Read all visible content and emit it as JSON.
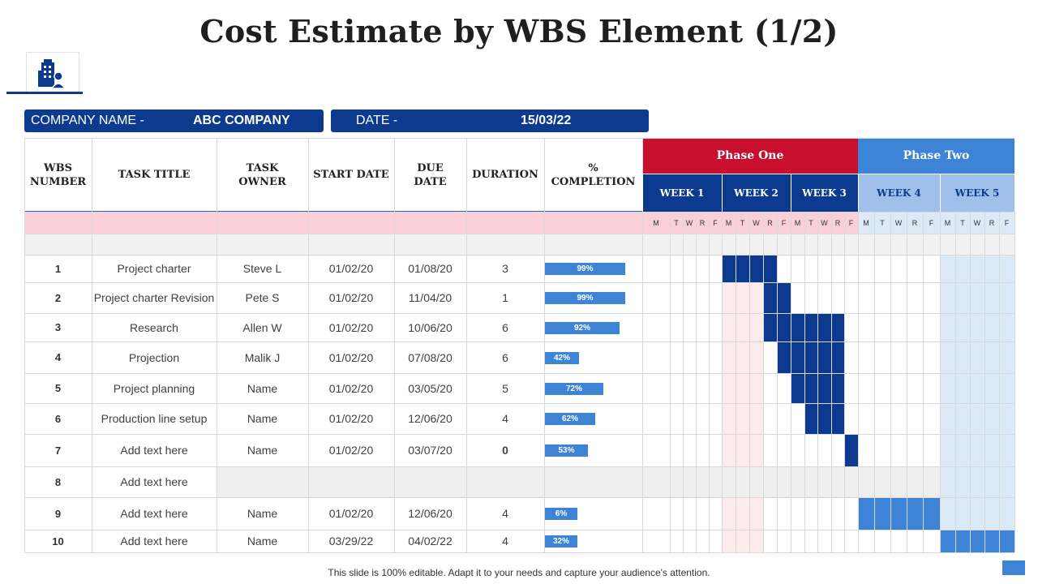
{
  "title": "Cost Estimate by WBS Element (1/2)",
  "logo_icon": "building-person-icon",
  "company": {
    "label": "COMPANY NAME -",
    "value": "ABC COMPANY"
  },
  "date": {
    "label": "DATE -",
    "value": "15/03/22"
  },
  "columns": [
    "WBS NUMBER",
    "TASK TITLE",
    "TASK OWNER",
    "START DATE",
    "DUE DATE",
    "DURATION",
    "% COMPLETION"
  ],
  "phases": [
    {
      "name": "Phase One",
      "color": "#c8102e"
    },
    {
      "name": "Phase Two",
      "color": "#3d84d6"
    }
  ],
  "weeks": [
    "WEEK 1",
    "WEEK 2",
    "WEEK 3",
    "WEEK 4",
    "WEEK 5"
  ],
  "days": [
    "M",
    "T",
    "W",
    "R",
    "F"
  ],
  "tasks": [
    {
      "wbs": "1",
      "title": "Project charter",
      "owner": "Steve L",
      "start": "01/02/20",
      "due": "01/08/20",
      "duration": "3",
      "completion": "99%",
      "completion_value": 0.99
    },
    {
      "wbs": "2",
      "title": "Project charter Revision",
      "owner": "Pete S",
      "start": "01/02/20",
      "due": "11/04/20",
      "duration": "1",
      "completion": "99%",
      "completion_value": 0.99
    },
    {
      "wbs": "3",
      "title": "Research",
      "owner": "Allen W",
      "start": "01/02/20",
      "due": "10/06/20",
      "duration": "6",
      "completion": "92%",
      "completion_value": 0.92
    },
    {
      "wbs": "4",
      "title": "Projection",
      "owner": "Malik J",
      "start": "01/02/20",
      "due": "07/08/20",
      "duration": "6",
      "completion": "42%",
      "completion_value": 0.42
    },
    {
      "wbs": "5",
      "title": "Project planning",
      "owner": "Name",
      "start": "01/02/20",
      "due": "03/05/20",
      "duration": "5",
      "completion": "72%",
      "completion_value": 0.72
    },
    {
      "wbs": "6",
      "title": "Production line setup",
      "owner": "Name",
      "start": "01/02/20",
      "due": "12/06/20",
      "duration": "4",
      "completion": "62%",
      "completion_value": 0.62
    },
    {
      "wbs": "7",
      "title": "Add text here",
      "owner": "Name",
      "start": "01/02/20",
      "due": "03/07/20",
      "duration": "0",
      "completion": "53%",
      "completion_value": 0.53
    },
    {
      "wbs": "8",
      "title": "Add text here",
      "owner": "",
      "start": "",
      "due": "",
      "duration": "",
      "completion": "",
      "completion_value": null
    },
    {
      "wbs": "9",
      "title": "Add text here",
      "owner": "Name",
      "start": "01/02/20",
      "due": "12/06/20",
      "duration": "4",
      "completion": "6%",
      "completion_value": 0.06
    },
    {
      "wbs": "10",
      "title": "Add text here",
      "owner": "Name",
      "start": "03/29/22",
      "due": "04/02/22",
      "duration": "4",
      "completion": "32%",
      "completion_value": 0.32
    }
  ],
  "gantt_days": [
    [
      "W2-M",
      "W2-T",
      "W2-W",
      "W2-R"
    ],
    [
      "W2-R",
      "W2-F"
    ],
    [
      "W2-R",
      "W2-F",
      "W3-M",
      "W3-T",
      "W3-W",
      "W3-R"
    ],
    [
      "W2-F",
      "W3-M",
      "W3-T",
      "W3-W",
      "W3-R"
    ],
    [
      "W3-M",
      "W3-T",
      "W3-W",
      "W3-R"
    ],
    [
      "W3-T",
      "W3-W",
      "W3-R"
    ],
    [
      "W3-F"
    ],
    [],
    [
      "W4-M",
      "W4-T",
      "W4-W",
      "W4-R",
      "W4-F"
    ],
    [
      "W5-M",
      "W5-T",
      "W5-W",
      "W5-R",
      "W5-F"
    ]
  ],
  "colors": {
    "navy": "#0b3a8f",
    "phase_one": "#c8102e",
    "phase_two": "#3d84d6",
    "bar": "#3d84d6",
    "pink": "#f9d0d5",
    "light_blue": "#dce9f7"
  },
  "footer": "This slide is 100% editable. Adapt it to your needs and capture your audience's attention."
}
